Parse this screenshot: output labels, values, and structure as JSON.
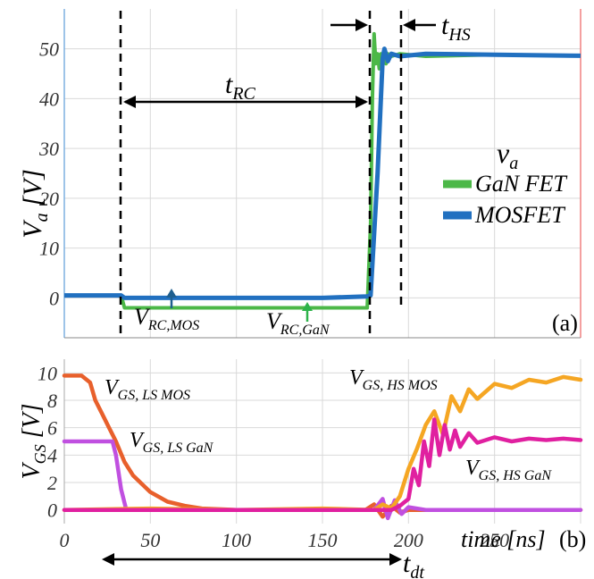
{
  "chart_data": [
    {
      "type": "line",
      "panel_label": "(a)",
      "ylabel_main": "V",
      "ylabel_sub": "a",
      "ylabel_unit": " [V]",
      "ylim": [
        -8,
        58
      ],
      "xlim": [
        0,
        300
      ],
      "y_ticks": [
        0,
        10,
        20,
        30,
        40,
        50
      ],
      "grid": true,
      "legend_title_main": "v",
      "legend_title_sub": "a",
      "legend_position": "right",
      "series": [
        {
          "name": "GaN FET",
          "color": "#4cb848",
          "x": [
            0,
            33,
            35,
            50,
            100,
            150,
            176,
            178,
            179,
            180,
            181,
            182,
            183,
            184,
            185,
            186,
            187,
            188,
            190,
            195,
            210,
            250,
            300
          ],
          "y": [
            0.5,
            0.5,
            -2,
            -2,
            -2,
            -2,
            -2,
            15,
            40,
            53,
            47,
            49,
            46,
            49,
            48,
            49,
            47,
            49,
            48.5,
            49,
            48.5,
            48.8,
            48.6
          ]
        },
        {
          "name": "MOSFET",
          "color": "#2170c0",
          "x": [
            0,
            33,
            35,
            100,
            150,
            176,
            178,
            182,
            185,
            186,
            188,
            190,
            195,
            210,
            250,
            300
          ],
          "y": [
            0.5,
            0.5,
            0,
            0,
            0,
            0.3,
            0.5,
            25,
            48,
            50,
            47.5,
            49,
            48.5,
            49,
            48.8,
            48.6
          ]
        }
      ],
      "annotations": [
        {
          "main": "t",
          "sub": "RC"
        },
        {
          "main": "t",
          "sub": "HS"
        },
        {
          "main": "V",
          "sub": "RC,MOS"
        },
        {
          "main": "V",
          "sub": "RC,GaN"
        }
      ]
    },
    {
      "type": "line",
      "panel_label": "(b)",
      "ylabel_main": "V",
      "ylabel_sub": "GS",
      "ylabel_unit": " [V]",
      "xlabel": "time [ns]",
      "xlim": [
        0,
        300
      ],
      "ylim": [
        -1,
        11
      ],
      "x_ticks": [
        0,
        50,
        100,
        150,
        200,
        250
      ],
      "y_ticks": [
        0,
        2,
        4,
        6,
        8,
        10
      ],
      "grid": true,
      "series": [
        {
          "name": "GS, LS MOS",
          "color": "#e8602c",
          "x": [
            0,
            10,
            15,
            18,
            22,
            26,
            30,
            35,
            40,
            50,
            60,
            70,
            80,
            100,
            150,
            175,
            180,
            185,
            190,
            195,
            200,
            300
          ],
          "y": [
            9.8,
            9.8,
            9.3,
            8.0,
            7.0,
            6.0,
            5.0,
            3.5,
            2.5,
            1.3,
            0.6,
            0.3,
            0.1,
            0.0,
            0.0,
            0.0,
            0.4,
            -0.5,
            0.3,
            -0.2,
            0.0,
            0.0
          ]
        },
        {
          "name": "GS, LS GaN",
          "color": "#c050e0",
          "x": [
            0,
            28,
            30,
            33,
            36,
            40,
            50,
            100,
            150,
            180,
            185,
            188,
            192,
            196,
            200,
            210,
            300
          ],
          "y": [
            5.0,
            5.0,
            4.0,
            1.5,
            0.0,
            0.0,
            0.0,
            0.0,
            0.0,
            0.0,
            0.8,
            -0.6,
            0.7,
            -0.3,
            0.2,
            0.0,
            0.0
          ]
        },
        {
          "name": "GS, HS MOS",
          "color": "#f5a623",
          "x": [
            0,
            50,
            100,
            150,
            180,
            185,
            190,
            195,
            200,
            205,
            210,
            215,
            220,
            225,
            230,
            235,
            240,
            250,
            260,
            270,
            280,
            290,
            300
          ],
          "y": [
            0,
            0.1,
            0,
            0.1,
            0,
            0.4,
            0.1,
            1.0,
            3.0,
            4.5,
            6.2,
            7.2,
            5.5,
            8.3,
            7.2,
            8.8,
            8.1,
            9.2,
            8.9,
            9.5,
            9.3,
            9.7,
            9.5
          ]
        },
        {
          "name": "GS, HS GaN",
          "color": "#e020a0",
          "x": [
            0,
            50,
            100,
            150,
            190,
            195,
            200,
            203,
            206,
            209,
            212,
            215,
            218,
            221,
            224,
            227,
            230,
            235,
            240,
            250,
            260,
            270,
            280,
            290,
            300
          ],
          "y": [
            0,
            0,
            0,
            0,
            0,
            0.3,
            0.8,
            3.0,
            1.8,
            5.0,
            3.2,
            6.6,
            4.0,
            6.2,
            4.4,
            5.8,
            4.6,
            5.6,
            4.9,
            5.3,
            5.0,
            5.2,
            5.1,
            5.2,
            5.1
          ]
        }
      ],
      "annotations": [
        {
          "main": "t",
          "sub": "dt"
        }
      ]
    }
  ]
}
